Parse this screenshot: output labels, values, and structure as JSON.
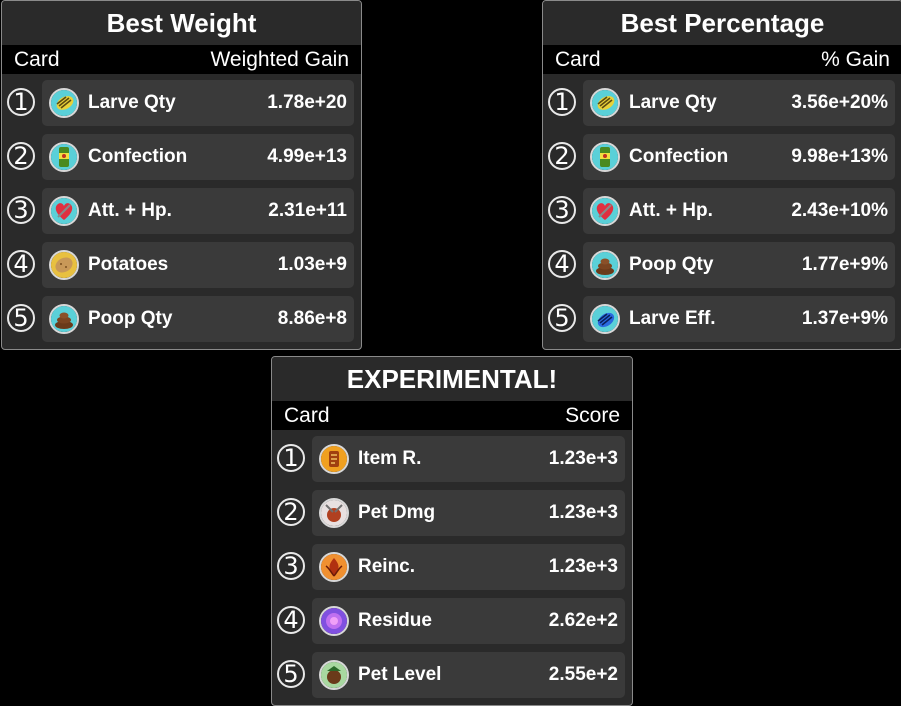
{
  "panels": [
    {
      "title": "Best Weight",
      "col_left": "Card",
      "col_right": "Weighted Gain",
      "rows": [
        {
          "rank": "1",
          "name": "Larve Qty",
          "value": "1.78e+20",
          "icon": "larva-icon"
        },
        {
          "rank": "2",
          "name": "Confection",
          "value": "4.99e+13",
          "icon": "confection-icon"
        },
        {
          "rank": "3",
          "name": "Att. + Hp.",
          "value": "2.31e+11",
          "icon": "heart-sword-icon"
        },
        {
          "rank": "4",
          "name": "Potatoes",
          "value": "1.03e+9",
          "icon": "potato-icon"
        },
        {
          "rank": "5",
          "name": "Poop Qty",
          "value": "8.86e+8",
          "icon": "poop-icon"
        }
      ]
    },
    {
      "title": "Best Percentage",
      "col_left": "Card",
      "col_right": "% Gain",
      "rows": [
        {
          "rank": "1",
          "name": "Larve Qty",
          "value": "3.56e+20%",
          "icon": "larva-icon"
        },
        {
          "rank": "2",
          "name": "Confection",
          "value": "9.98e+13%",
          "icon": "confection-icon"
        },
        {
          "rank": "3",
          "name": "Att. + Hp.",
          "value": "2.43e+10%",
          "icon": "heart-sword-icon"
        },
        {
          "rank": "4",
          "name": "Poop Qty",
          "value": "1.77e+9%",
          "icon": "poop-icon"
        },
        {
          "rank": "5",
          "name": "Larve Eff.",
          "value": "1.37e+9%",
          "icon": "larva-efficiency-icon"
        }
      ]
    },
    {
      "title": "EXPERIMENTAL!",
      "col_left": "Card",
      "col_right": "Score",
      "rows": [
        {
          "rank": "1",
          "name": "Item R.",
          "value": "1.23e+3",
          "icon": "item-rating-icon"
        },
        {
          "rank": "2",
          "name": "Pet Dmg",
          "value": "1.23e+3",
          "icon": "pet-damage-icon"
        },
        {
          "rank": "3",
          "name": "Reinc.",
          "value": "1.23e+3",
          "icon": "reincarnation-icon"
        },
        {
          "rank": "4",
          "name": "Residue",
          "value": "2.62e+2",
          "icon": "residue-icon"
        },
        {
          "rank": "5",
          "name": "Pet Level",
          "value": "2.55e+2",
          "icon": "pet-level-icon"
        }
      ]
    }
  ]
}
